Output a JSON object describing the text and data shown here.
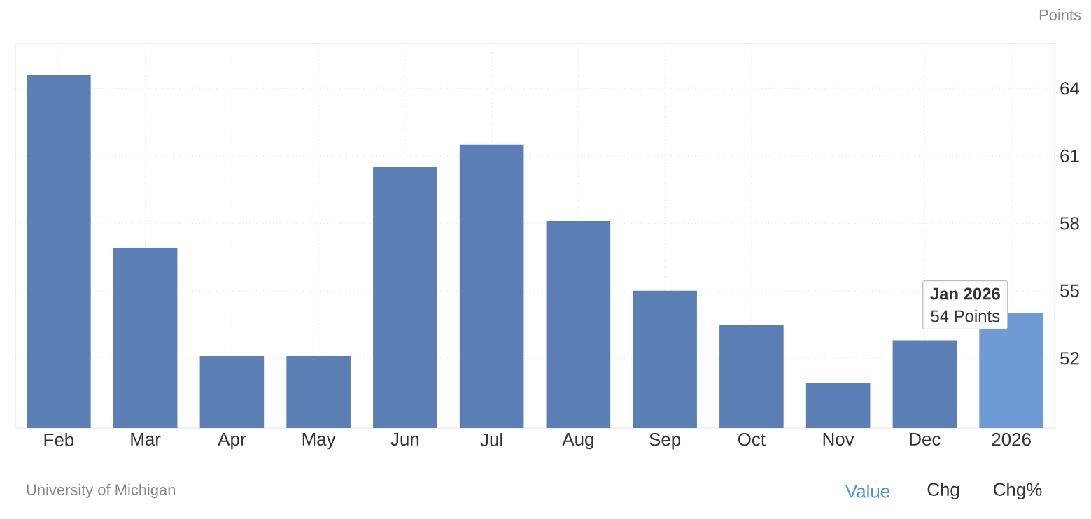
{
  "chart_data": {
    "type": "bar",
    "ylabel": "Points",
    "categories": [
      "Feb",
      "Mar",
      "Apr",
      "May",
      "Jun",
      "Jul",
      "Aug",
      "Sep",
      "Oct",
      "Nov",
      "Dec",
      "2026"
    ],
    "values": [
      64.6,
      56.9,
      52.1,
      52.1,
      60.5,
      61.5,
      58.1,
      55.0,
      53.5,
      50.9,
      52.8,
      54
    ],
    "colors": [
      "#5b7fb5",
      "#5b7fb5",
      "#5b7fb5",
      "#5b7fb5",
      "#5b7fb5",
      "#5b7fb5",
      "#5b7fb5",
      "#5b7fb5",
      "#5b7fb5",
      "#5b7fb5",
      "#5b7fb5",
      "#709ad3"
    ],
    "ylim": [
      48.9,
      66
    ],
    "yticks": [
      52,
      55,
      58,
      61,
      64
    ],
    "grid": true,
    "annotations": [
      "Jan 2026",
      "54 Points",
      "University of Michigan",
      "Value",
      "Chg",
      "Chg%"
    ]
  }
}
